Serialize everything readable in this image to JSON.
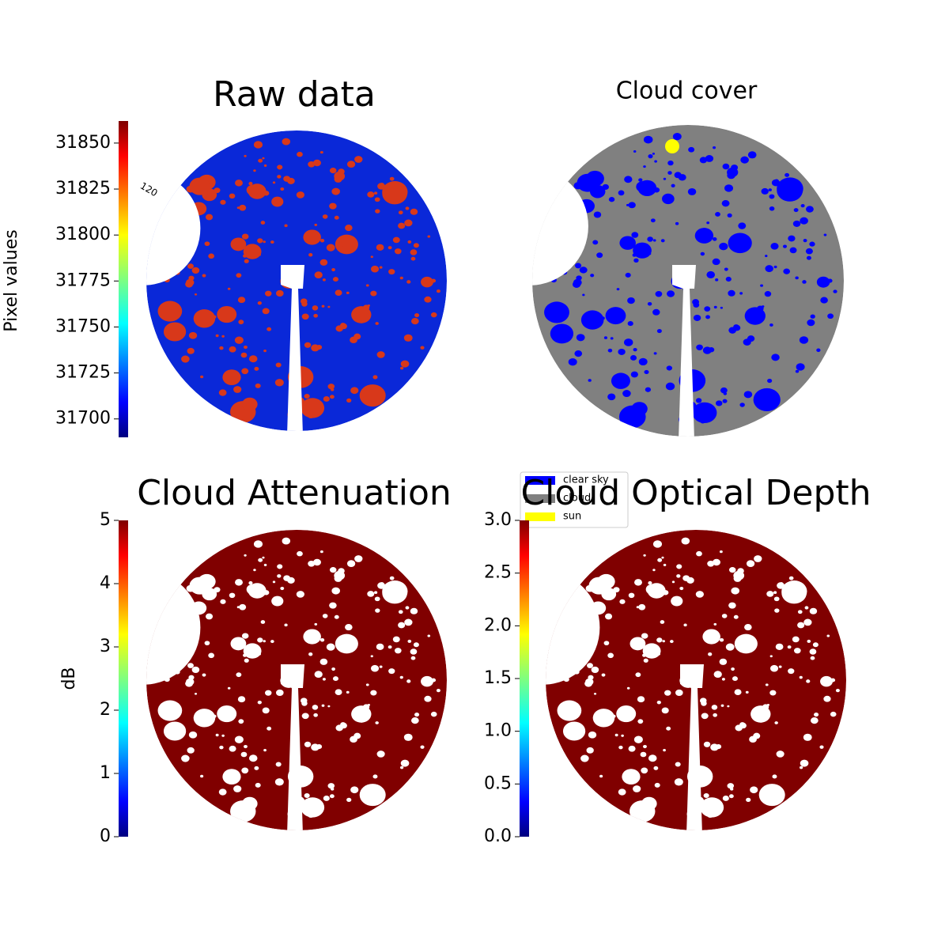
{
  "chart_data": [
    {
      "type": "image",
      "title": "Raw data",
      "colorbar_label": "Pixel values",
      "clim": [
        31690,
        31862
      ],
      "ticks": [
        31700,
        31725,
        31750,
        31775,
        31800,
        31825,
        31850
      ],
      "annotations": [
        "120"
      ]
    },
    {
      "type": "image",
      "title": "Cloud cover",
      "legend": [
        {
          "name": "clear sky",
          "color": "#0000ff"
        },
        {
          "name": "cloud",
          "color": "#808080"
        },
        {
          "name": "sun",
          "color": "#ffff00"
        }
      ]
    },
    {
      "type": "image",
      "title": "Cloud Attenuation",
      "colorbar_label": "dB",
      "clim": [
        0,
        5
      ],
      "ticks": [
        0,
        1,
        2,
        3,
        4,
        5
      ]
    },
    {
      "type": "image",
      "title": "Cloud Optical Depth",
      "clim": [
        0,
        3
      ],
      "ticks": [
        {
          "value": 0,
          "label": "0.0"
        },
        {
          "value": 0.5,
          "label": "0.5"
        },
        {
          "value": 1,
          "label": "1.0"
        },
        {
          "value": 1.5,
          "label": "1.5"
        },
        {
          "value": 2,
          "label": "2.0"
        },
        {
          "value": 2.5,
          "label": "2.5"
        },
        {
          "value": 3,
          "label": "3.0"
        }
      ]
    }
  ]
}
